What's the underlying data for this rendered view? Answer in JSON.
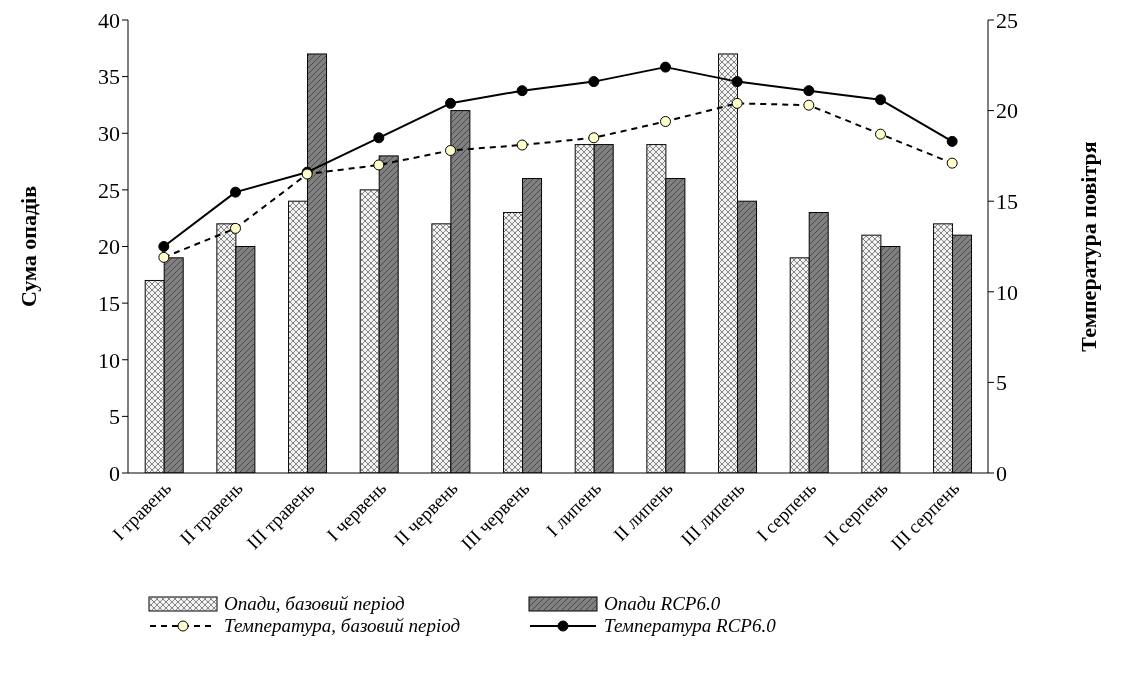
{
  "chart_data": {
    "type": "bar",
    "ylabel": "Сума опадів",
    "y2label": "Температура повітря",
    "categories": [
      "I травень",
      "II травень",
      "III травень",
      "I червень",
      "II червень",
      "III червень",
      "I липень",
      "II липень",
      "III липень",
      "I серпень",
      "II серпень",
      "III серпень"
    ],
    "series": [
      {
        "name": "Опади, базовий період",
        "color": "#f2f2f2",
        "values": [
          17,
          22,
          24,
          25,
          22,
          23,
          29,
          29,
          37,
          19,
          21,
          22
        ]
      },
      {
        "name": "Опади RCP6.0",
        "color": "#808080",
        "values": [
          19,
          20,
          37,
          28,
          32,
          26,
          29,
          26,
          24,
          23,
          20,
          21
        ]
      },
      {
        "name": "Температура, базовий період",
        "type": "line",
        "axis": "y2",
        "color": "#000000",
        "marker": "circle",
        "line_style": "dashed",
        "values": [
          11.9,
          13.5,
          16.5,
          17.0,
          17.8,
          18.1,
          18.5,
          19.4,
          20.4,
          20.3,
          18.7,
          17.1
        ]
      },
      {
        "name": "Температура RCP6.0",
        "type": "line",
        "axis": "y2",
        "color": "#000000",
        "marker": "circle",
        "line_style": "solid",
        "values": [
          12.5,
          15.5,
          16.6,
          18.5,
          20.4,
          21.1,
          21.6,
          22.4,
          21.6,
          21.1,
          20.6,
          18.3
        ]
      }
    ],
    "ylim": [
      0,
      40
    ],
    "yticks": [
      0,
      5,
      10,
      15,
      20,
      25,
      30,
      35,
      40
    ],
    "y2lim": [
      0,
      25
    ],
    "y2ticks": [
      0,
      5,
      10,
      15,
      20,
      25
    ],
    "grid": false,
    "legend": "bottom"
  }
}
